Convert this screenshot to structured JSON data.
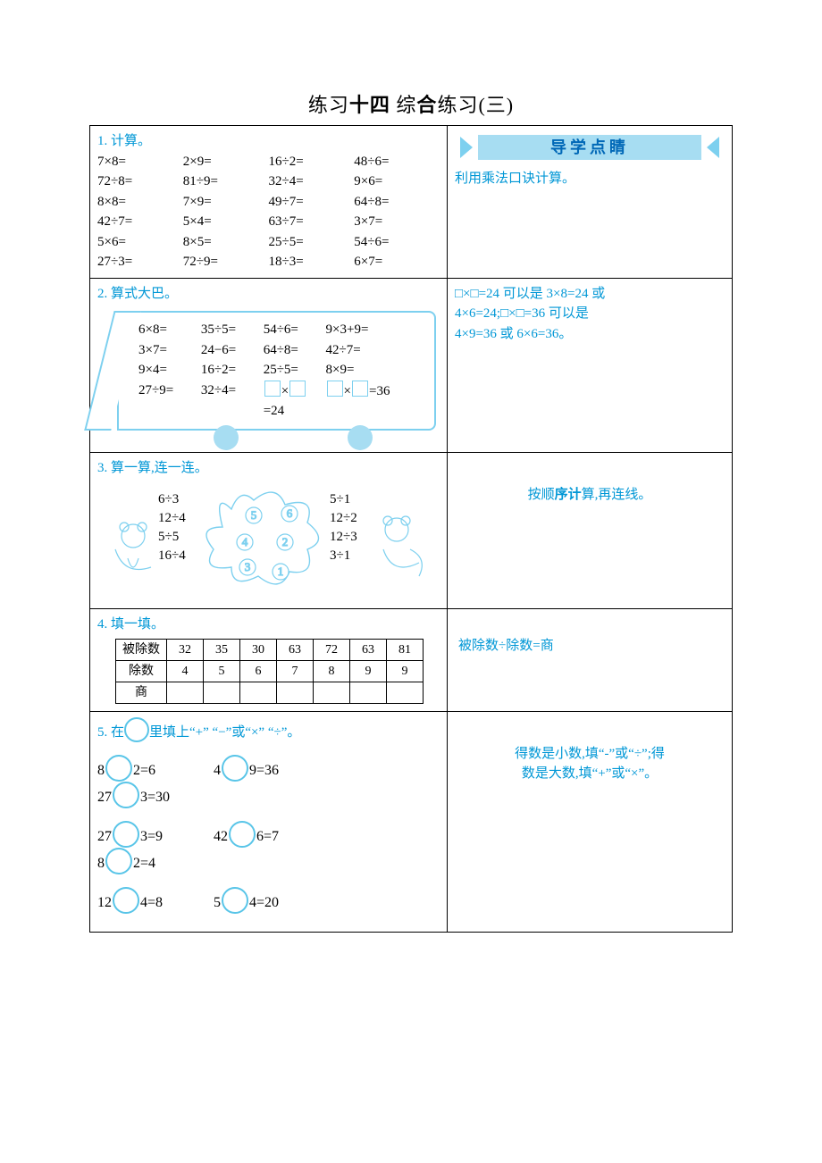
{
  "title_parts": [
    "练习",
    "十四",
    "  综",
    "合",
    "练习",
    "(三)"
  ],
  "hint_banner": "导学点睛",
  "s1": {
    "label": "1.  计算。",
    "rows": [
      [
        "7×8=",
        "2×9=",
        "16÷2=",
        "48÷6="
      ],
      [
        "72÷8=",
        "81÷9=",
        "32÷4=",
        "9×6="
      ],
      [
        "8×8=",
        "7×9=",
        "49÷7=",
        "64÷8="
      ],
      [
        "42÷7=",
        "5×4=",
        "63÷7=",
        "3×7="
      ],
      [
        "5×6=",
        "8×5=",
        "25÷5=",
        "54÷6="
      ],
      [
        "27÷3=",
        "72÷9=",
        "18÷3=",
        "6×7="
      ]
    ],
    "hint": "利用乘法口诀计算。"
  },
  "s2": {
    "label": "2.  算式大巴。",
    "rows": [
      [
        "6×8=",
        "35÷5=",
        "54÷6=",
        "9×3+9="
      ],
      [
        "3×7=",
        "24−6=",
        "64÷8=",
        "42÷7="
      ],
      [
        "9×4=",
        "16÷2=",
        "25÷5=",
        "8×9="
      ],
      [
        "27÷9=",
        "32÷4=",
        "□×□=24",
        "□×□=36"
      ]
    ],
    "fill_labels": {
      "eq24_suffix": "=24",
      "eq36_suffix": "=36",
      "times": "×"
    },
    "hint_lines": [
      "□×□=24 可以是 3×8=24 或",
      "4×6=24;□×□=36 可以是",
      "4×9=36 或 6×6=36。"
    ]
  },
  "s3": {
    "label": "3.  算一算,连一连。",
    "colA": [
      "6÷3",
      "12÷4",
      "5÷5",
      "16÷4"
    ],
    "colB": [
      "5÷1",
      "12÷2",
      "12÷3",
      "3÷1"
    ],
    "cloud_nums": [
      "5",
      "6",
      "4",
      "2",
      "3",
      "1"
    ],
    "hint": "按顺序计算,再连线。"
  },
  "s4": {
    "label": "4.  填一填。",
    "headers": [
      "被除数",
      "除数",
      "商"
    ],
    "dividend": [
      "32",
      "35",
      "30",
      "63",
      "72",
      "63",
      "81"
    ],
    "divisor": [
      "4",
      "5",
      "6",
      "7",
      "8",
      "9",
      "9"
    ],
    "hint": "被除数÷除数=商"
  },
  "s5": {
    "label_pre": "5.  在",
    "label_post": "里填上“+” “−”或“×” “÷”。",
    "rows": [
      [
        "8",
        "2=6",
        "4",
        "9=36",
        "27",
        "3=30"
      ],
      [
        "27",
        "3=9",
        "42",
        "6=7",
        "8",
        "2=4"
      ],
      [
        "12",
        "4=8",
        "5",
        "4=20"
      ]
    ],
    "hint_lines": [
      "得数是小数,填“-”或“÷”;得",
      "数是大数,填“+”或“×”。"
    ]
  },
  "colors": {
    "accent": "#0097d6",
    "light": "#a7ddf2",
    "mid": "#7dd0ef",
    "text": "#000000"
  }
}
